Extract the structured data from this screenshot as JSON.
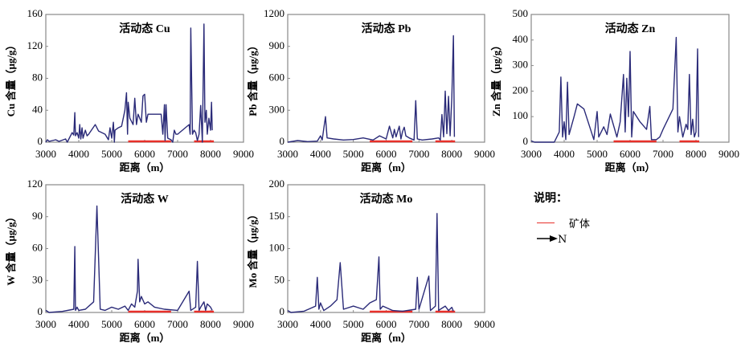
{
  "chart_data": [
    {
      "type": "line",
      "title": "活动态 Cu",
      "xlabel": "距离（m）",
      "ylabel": "Cu 含量（μg/g）",
      "xlim": [
        3000,
        9000
      ],
      "ylim": [
        0,
        160
      ],
      "xticks": [
        3000,
        4000,
        5000,
        6000,
        7000,
        8000,
        9000
      ],
      "yticks": [
        0,
        40,
        80,
        120,
        160
      ],
      "x": [
        3000,
        3050,
        3100,
        3200,
        3300,
        3400,
        3600,
        3650,
        3800,
        3850,
        3880,
        3900,
        3950,
        4000,
        4030,
        4060,
        4100,
        4130,
        4200,
        4250,
        4300,
        4400,
        4500,
        4600,
        4800,
        4900,
        4950,
        5000,
        5050,
        5080,
        5100,
        5200,
        5300,
        5400,
        5450,
        5480,
        5500,
        5550,
        5650,
        5700,
        5750,
        5800,
        5900,
        5950,
        6000,
        6050,
        6100,
        6500,
        6550,
        6600,
        6620,
        6650,
        6700,
        6800,
        6850,
        6900,
        6950,
        7000,
        7350,
        7380,
        7400,
        7450,
        7500,
        7550,
        7600,
        7650,
        7700,
        7750,
        7800,
        7830,
        7870,
        7900,
        7950,
        8000,
        8030,
        8050
      ],
      "y": [
        0,
        3,
        1,
        2,
        3,
        1,
        4,
        0,
        12,
        9,
        37,
        8,
        12,
        5,
        22,
        4,
        18,
        5,
        15,
        8,
        10,
        16,
        22,
        14,
        10,
        3,
        18,
        5,
        25,
        0,
        15,
        18,
        20,
        40,
        62,
        10,
        50,
        30,
        22,
        55,
        22,
        35,
        25,
        58,
        60,
        25,
        35,
        35,
        10,
        47,
        2,
        47,
        5,
        3,
        0,
        15,
        10,
        10,
        22,
        10,
        143,
        10,
        15,
        12,
        2,
        10,
        46,
        0,
        148,
        25,
        40,
        10,
        30,
        15,
        50,
        15
      ],
      "ore_body_ranges": [
        [
          5500,
          6800
        ],
        [
          7500,
          8100
        ]
      ]
    },
    {
      "type": "line",
      "title": "活动态 Pb",
      "xlabel": "距离（m）",
      "ylabel": "Pb 含量（μg/g）",
      "xlim": [
        3000,
        9000
      ],
      "ylim": [
        0,
        1200
      ],
      "xticks": [
        3000,
        4000,
        5000,
        6000,
        7000,
        8000,
        9000
      ],
      "yticks": [
        0,
        300,
        600,
        900,
        1200
      ],
      "x": [
        3000,
        3300,
        3600,
        3900,
        4000,
        4050,
        4100,
        4150,
        4200,
        4400,
        4700,
        5000,
        5300,
        5600,
        5800,
        6000,
        6100,
        6200,
        6250,
        6300,
        6400,
        6450,
        6500,
        6550,
        6600,
        6700,
        6850,
        6900,
        6950,
        7100,
        7400,
        7600,
        7650,
        7700,
        7750,
        7800,
        7850,
        7900,
        7950,
        8000,
        8050,
        8080
      ],
      "y": [
        0,
        15,
        5,
        10,
        60,
        20,
        130,
        240,
        40,
        30,
        20,
        25,
        40,
        20,
        60,
        30,
        150,
        40,
        120,
        50,
        150,
        30,
        100,
        140,
        60,
        40,
        20,
        390,
        30,
        20,
        30,
        40,
        20,
        260,
        50,
        480,
        80,
        430,
        60,
        420,
        1000,
        50
      ],
      "ore_body_ranges": [
        [
          5500,
          6800
        ],
        [
          7500,
          8100
        ]
      ]
    },
    {
      "type": "line",
      "title": "活动态 Zn",
      "xlabel": "距离（m）",
      "ylabel": "Zn 含量（μg/g）",
      "xlim": [
        3000,
        9000
      ],
      "ylim": [
        0,
        500
      ],
      "xticks": [
        3000,
        4000,
        5000,
        6000,
        7000,
        8000,
        9000
      ],
      "yticks": [
        0,
        100,
        200,
        300,
        400,
        500
      ],
      "x": [
        3000,
        3100,
        3700,
        3850,
        3900,
        3950,
        4000,
        4050,
        4100,
        4150,
        4300,
        4400,
        4600,
        4900,
        5000,
        5050,
        5200,
        5300,
        5400,
        5600,
        5700,
        5800,
        5850,
        5900,
        5950,
        6000,
        6050,
        6100,
        6300,
        6500,
        6600,
        6650,
        6800,
        6900,
        7000,
        7300,
        7400,
        7450,
        7500,
        7600,
        7700,
        7750,
        7800,
        7850,
        7900,
        7950,
        8000,
        8050,
        8080
      ],
      "y": [
        5,
        0,
        0,
        40,
        255,
        20,
        80,
        10,
        235,
        30,
        100,
        150,
        130,
        10,
        120,
        20,
        60,
        30,
        110,
        20,
        80,
        265,
        40,
        250,
        100,
        355,
        20,
        120,
        80,
        50,
        140,
        10,
        10,
        20,
        50,
        130,
        410,
        40,
        100,
        20,
        70,
        50,
        265,
        30,
        90,
        20,
        40,
        365,
        20
      ],
      "ore_body_ranges": [
        [
          5500,
          6800
        ],
        [
          7500,
          8100
        ]
      ]
    },
    {
      "type": "line",
      "title": "活动态 W",
      "xlabel": "距离（m）",
      "ylabel": "W 含量（μg/g）",
      "xlim": [
        3000,
        9000
      ],
      "ylim": [
        0,
        120
      ],
      "xticks": [
        3000,
        4000,
        5000,
        6000,
        7000,
        8000,
        9000
      ],
      "yticks": [
        0,
        30,
        60,
        90,
        120
      ],
      "x": [
        3000,
        3100,
        3500,
        3850,
        3880,
        3900,
        3950,
        4000,
        4200,
        4450,
        4550,
        4650,
        4800,
        5000,
        5200,
        5400,
        5500,
        5600,
        5700,
        5780,
        5800,
        5850,
        5900,
        6000,
        6100,
        6300,
        6600,
        7000,
        7350,
        7400,
        7550,
        7600,
        7650,
        7700,
        7800,
        7850,
        7900,
        8000,
        8050
      ],
      "y": [
        2,
        0,
        1,
        3,
        62,
        2,
        5,
        2,
        3,
        10,
        100,
        3,
        2,
        5,
        3,
        6,
        2,
        8,
        5,
        20,
        50,
        10,
        15,
        8,
        10,
        5,
        3,
        2,
        20,
        2,
        5,
        48,
        2,
        5,
        10,
        2,
        8,
        5,
        2
      ],
      "ore_body_ranges": [
        [
          5500,
          6800
        ],
        [
          7500,
          8100
        ]
      ]
    },
    {
      "type": "line",
      "title": "活动态 Mo",
      "xlabel": "距离（m）",
      "ylabel": "Mo 含量（μg/g）",
      "xlim": [
        3000,
        9000
      ],
      "ylim": [
        0,
        200
      ],
      "xticks": [
        3000,
        4000,
        5000,
        6000,
        7000,
        8000,
        9000
      ],
      "yticks": [
        0,
        50,
        100,
        150,
        200
      ],
      "x": [
        3000,
        3100,
        3500,
        3850,
        3900,
        3950,
        4000,
        4100,
        4300,
        4500,
        4600,
        4700,
        5000,
        5300,
        5500,
        5700,
        5780,
        5820,
        5900,
        6200,
        6500,
        6900,
        6950,
        7000,
        7300,
        7350,
        7500,
        7550,
        7600,
        7650,
        7800,
        7900,
        8000,
        8050
      ],
      "y": [
        3,
        0,
        2,
        10,
        55,
        5,
        15,
        3,
        10,
        20,
        78,
        5,
        10,
        5,
        15,
        20,
        87,
        5,
        10,
        3,
        2,
        5,
        55,
        5,
        57,
        3,
        10,
        155,
        3,
        5,
        10,
        3,
        8,
        2
      ],
      "ore_body_ranges": [
        [
          5500,
          6800
        ],
        [
          7500,
          8100
        ]
      ]
    }
  ],
  "legend": {
    "title": "说明：",
    "ore_body": "矿体",
    "north": "N"
  },
  "colors": {
    "series": "#2a2a78",
    "ore": "#e8302a",
    "axis": "#888888"
  }
}
